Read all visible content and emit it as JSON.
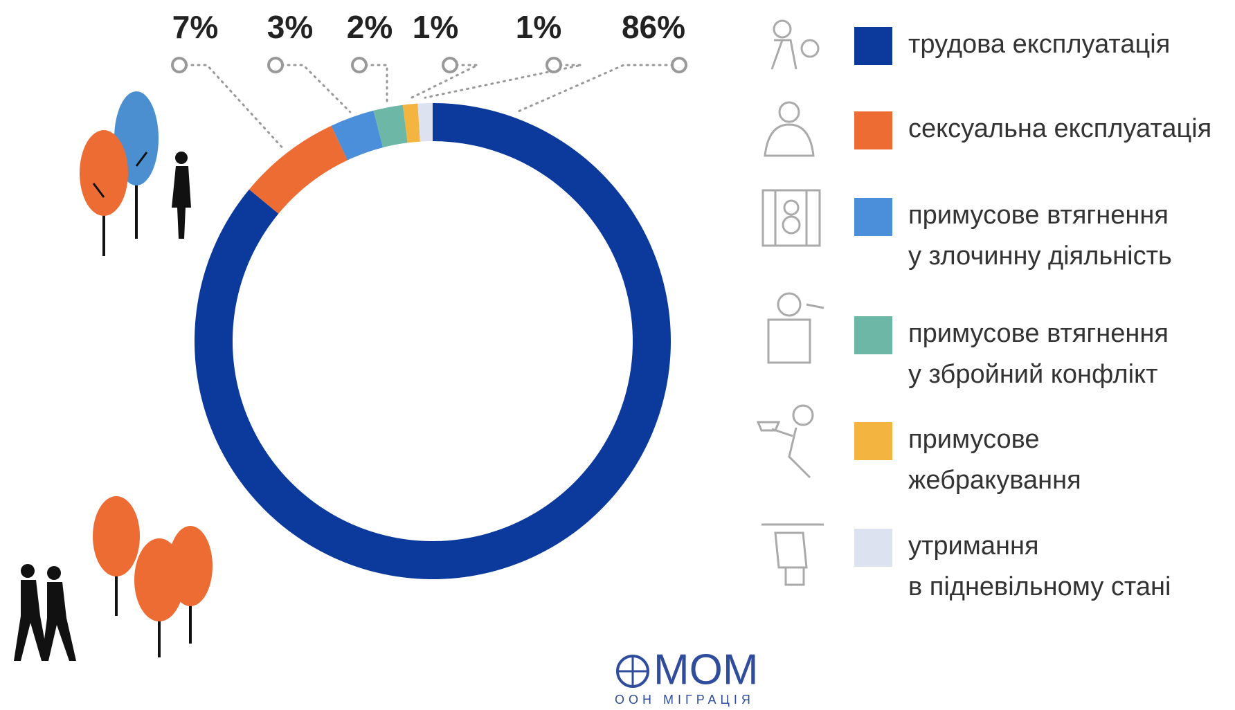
{
  "chart_data": {
    "type": "donut",
    "categories": [
      [
        "трудова експлуатація"
      ],
      [
        "сексуальна експлуатація"
      ],
      [
        "примусове втягнення",
        "у злочинну діяльність"
      ],
      [
        "примусове втягнення",
        "у збройний конфлікт"
      ],
      [
        "примусове",
        "жебракування"
      ],
      [
        "утримання",
        "в підневільному стані"
      ]
    ],
    "values": [
      86,
      7,
      3,
      2,
      1,
      1
    ],
    "value_labels": [
      "86%",
      "7%",
      "3%",
      "2%",
      "1%",
      "1%"
    ],
    "colors": [
      "#0b3a9c",
      "#ec6c34",
      "#4b8fdb",
      "#6db7a7",
      "#f3b53f",
      "#dde2f1"
    ]
  },
  "logo": {
    "name": "МОМ",
    "subtitle": "ООН МІГРАЦІЯ"
  }
}
